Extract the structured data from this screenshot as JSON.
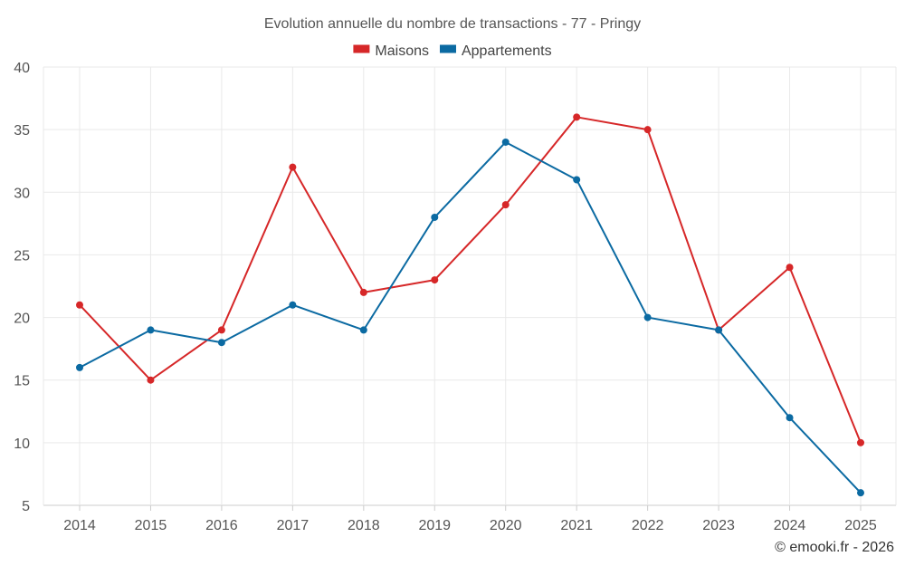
{
  "chart_data": {
    "type": "line",
    "title": "Evolution annuelle du nombre de transactions - 77 - Pringy",
    "xlabel": "",
    "ylabel": "",
    "categories": [
      "2014",
      "2015",
      "2016",
      "2017",
      "2018",
      "2019",
      "2020",
      "2021",
      "2022",
      "2023",
      "2024",
      "2025"
    ],
    "ylim": [
      5,
      40
    ],
    "yticks": [
      5,
      10,
      15,
      20,
      25,
      30,
      35,
      40
    ],
    "grid": true,
    "legend_position": "top-center",
    "series": [
      {
        "name": "Maisons",
        "color": "#d62728",
        "values": [
          21,
          15,
          19,
          32,
          22,
          23,
          29,
          36,
          35,
          19,
          24,
          10
        ]
      },
      {
        "name": "Appartements",
        "color": "#0b6aa2",
        "values": [
          16,
          19,
          18,
          21,
          19,
          28,
          34,
          31,
          20,
          19,
          12,
          6
        ]
      }
    ]
  },
  "credit": "© emooki.fr - 2026"
}
